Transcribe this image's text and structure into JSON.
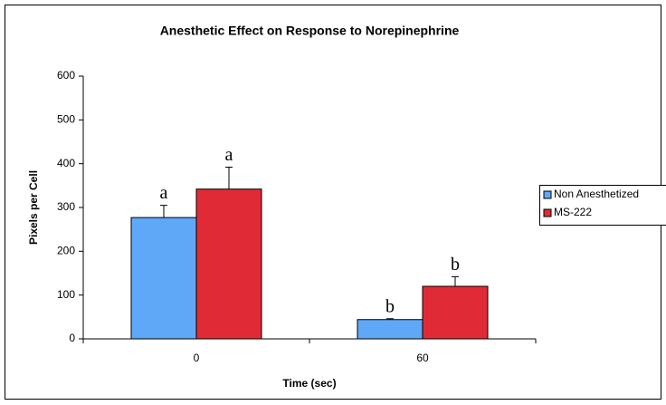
{
  "chart_data": {
    "type": "bar",
    "title": "Anesthetic Effect on Response to Norepinephrine",
    "x_label": "Time (sec)",
    "y_label": "Pixels per Cell",
    "categories": [
      "0",
      "60"
    ],
    "series": [
      {
        "name": "Non Anesthetized",
        "color": "#5fa8f8",
        "values": [
          277,
          44
        ],
        "errors": [
          28,
          2
        ],
        "annotations": [
          "a",
          "b"
        ]
      },
      {
        "name": "MS-222",
        "color": "#e02b36",
        "values": [
          342,
          120
        ],
        "errors": [
          50,
          22
        ],
        "annotations": [
          "a",
          "b"
        ]
      }
    ],
    "ylim": [
      0,
      600
    ],
    "yticks": [
      0,
      100,
      200,
      300,
      400,
      500,
      600
    ]
  }
}
